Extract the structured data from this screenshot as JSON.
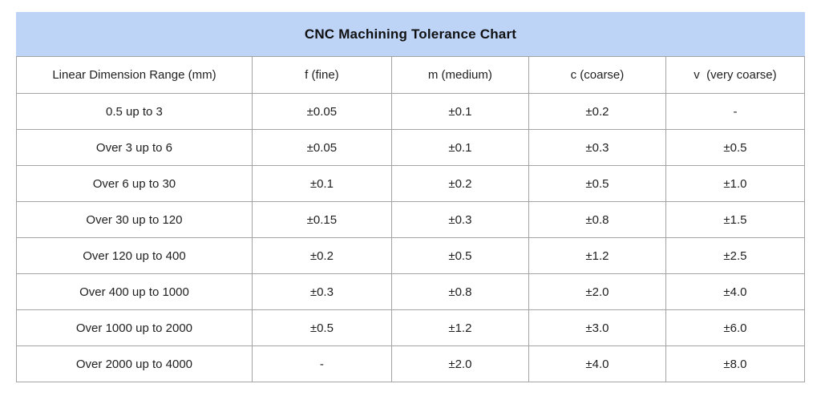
{
  "page_title": "CNC Machining Tolerance Chart",
  "colors": {
    "title_bg": "#bdd4f7",
    "border": "#a3a3a3",
    "text": "#1f1f1f",
    "background": "#ffffff"
  },
  "chart_data": {
    "type": "table",
    "title": "CNC Machining Tolerance Chart",
    "columns": [
      "Linear Dimension Range (mm)",
      "f (fine)",
      "m (medium)",
      "c (coarse)",
      "v  (very coarse)"
    ],
    "rows": [
      [
        "0.5 up to 3",
        "±0.05",
        "±0.1",
        "±0.2",
        "-"
      ],
      [
        "Over 3 up to 6",
        "±0.05",
        "±0.1",
        "±0.3",
        "±0.5"
      ],
      [
        "Over 6 up to 30",
        "±0.1",
        "±0.2",
        "±0.5",
        "±1.0"
      ],
      [
        "Over 30 up to 120",
        "±0.15",
        "±0.3",
        "±0.8",
        "±1.5"
      ],
      [
        "Over 120 up to 400",
        "±0.2",
        "±0.5",
        "±1.2",
        "±2.5"
      ],
      [
        "Over 400 up to 1000",
        "±0.3",
        "±0.8",
        "±2.0",
        "±4.0"
      ],
      [
        "Over 1000 up to 2000",
        "±0.5",
        "±1.2",
        "±3.0",
        "±6.0"
      ],
      [
        "Over 2000 up to 4000",
        "-",
        "±2.0",
        "±4.0",
        "±8.0"
      ]
    ],
    "layout": {
      "title_position": "top-banner",
      "grid": true,
      "first_column_role": "row-labels"
    }
  }
}
